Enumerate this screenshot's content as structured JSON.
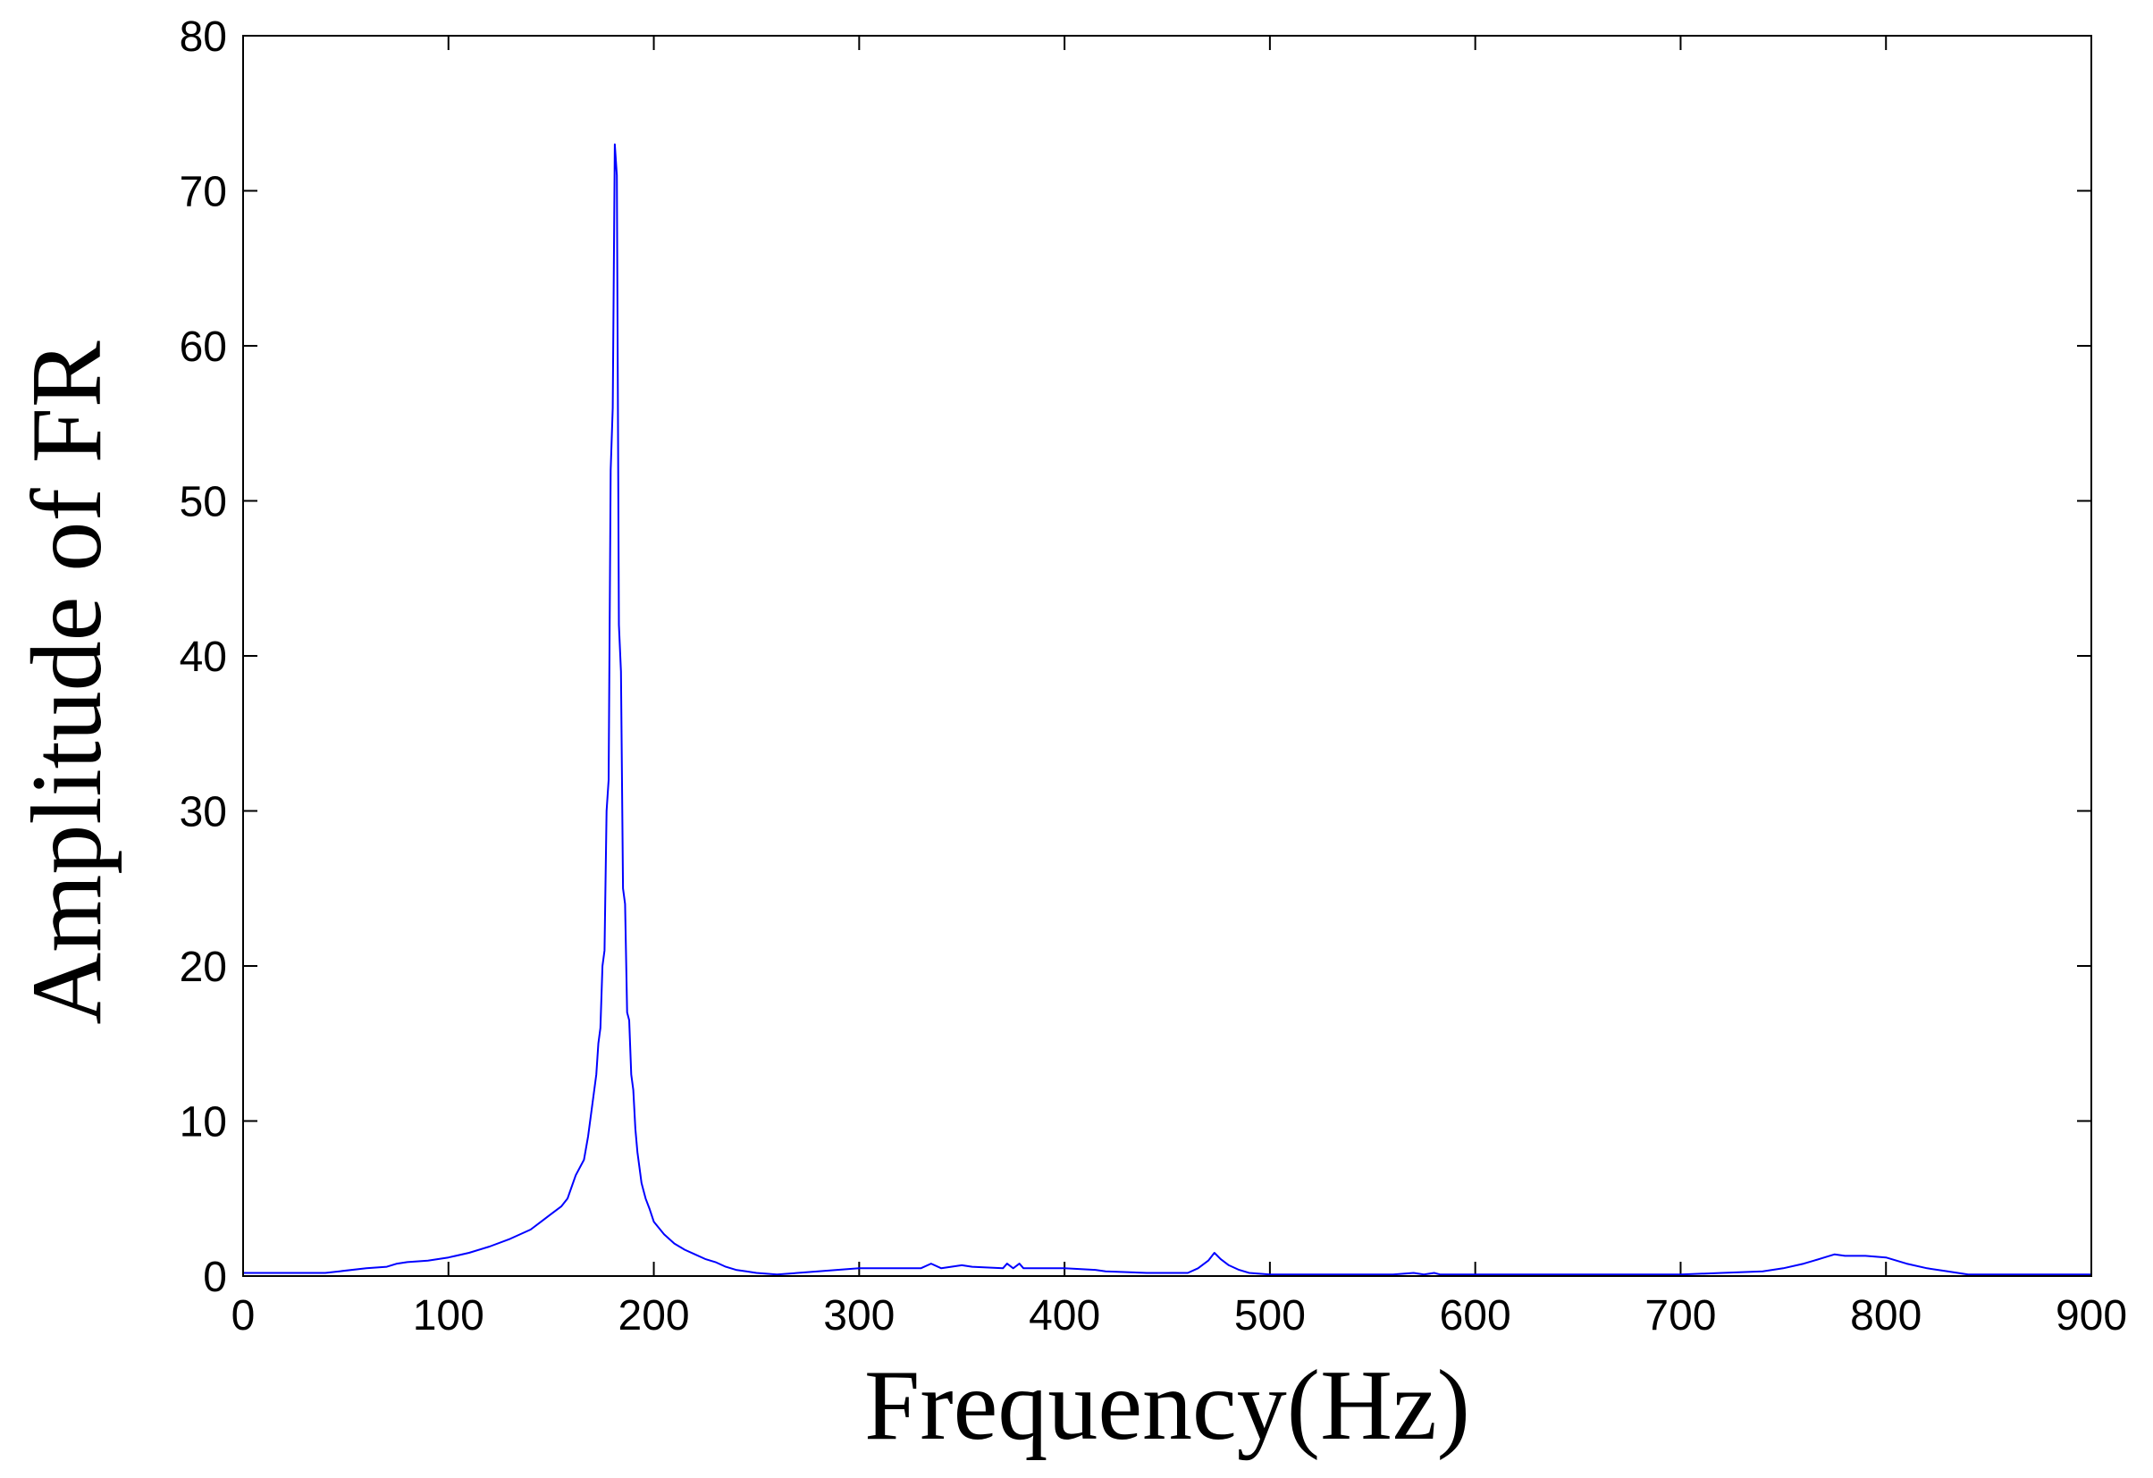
{
  "chart_data": {
    "type": "line",
    "title": "",
    "xlabel": "Frequency(Hz)",
    "ylabel": "Amplitude of FR",
    "xlim": [
      0,
      900
    ],
    "ylim": [
      0,
      80
    ],
    "xticks": [
      0,
      100,
      200,
      300,
      400,
      500,
      600,
      700,
      800,
      900
    ],
    "yticks": [
      0,
      10,
      20,
      30,
      40,
      50,
      60,
      70,
      80
    ],
    "grid": false,
    "legend": "none",
    "colors": {
      "line": "#0000ff",
      "axes": "#000000",
      "background": "#ffffff"
    },
    "series": [
      {
        "x": [
          0,
          40,
          60,
          70,
          75,
          80,
          90,
          100,
          110,
          120,
          130,
          140,
          145,
          150,
          155,
          158,
          162,
          166,
          168,
          170,
          172,
          173,
          174,
          175,
          176,
          177,
          178,
          179,
          180,
          181,
          182,
          183,
          184,
          185,
          186,
          187,
          188,
          189,
          190,
          191,
          192,
          193,
          194,
          195,
          196,
          198,
          200,
          205,
          210,
          215,
          220,
          225,
          230,
          235,
          240,
          245,
          250,
          260,
          280,
          300,
          330,
          335,
          340,
          350,
          355,
          370,
          372,
          375,
          378,
          380,
          400,
          415,
          420,
          440,
          460,
          465,
          470,
          473,
          476,
          480,
          485,
          490,
          500,
          520,
          540,
          560,
          570,
          575,
          580,
          583,
          600,
          650,
          700,
          720,
          740,
          750,
          760,
          765,
          770,
          775,
          780,
          790,
          800,
          810,
          820,
          830,
          840,
          900
        ],
        "values": [
          0.2,
          0.2,
          0.5,
          0.6,
          0.8,
          0.9,
          1.0,
          1.2,
          1.5,
          1.9,
          2.4,
          3.0,
          3.5,
          4.0,
          4.5,
          5.0,
          6.5,
          7.5,
          9.0,
          11.0,
          13.0,
          15.0,
          16.0,
          20.0,
          21.0,
          30.0,
          32.0,
          52.0,
          56.0,
          73.0,
          71.0,
          42.0,
          39.0,
          25.0,
          24.0,
          17.0,
          16.5,
          13.0,
          12.0,
          9.5,
          8.0,
          7.0,
          6.0,
          5.5,
          5.0,
          4.3,
          3.5,
          2.7,
          2.1,
          1.7,
          1.4,
          1.1,
          0.9,
          0.6,
          0.4,
          0.3,
          0.2,
          0.1,
          0.3,
          0.5,
          0.5,
          0.8,
          0.5,
          0.7,
          0.6,
          0.5,
          0.8,
          0.5,
          0.8,
          0.5,
          0.5,
          0.4,
          0.3,
          0.2,
          0.2,
          0.5,
          1.0,
          1.5,
          1.1,
          0.7,
          0.4,
          0.2,
          0.1,
          0.1,
          0.1,
          0.1,
          0.2,
          0.1,
          0.2,
          0.1,
          0.1,
          0.1,
          0.1,
          0.2,
          0.3,
          0.5,
          0.8,
          1.0,
          1.2,
          1.4,
          1.3,
          1.3,
          1.2,
          0.8,
          0.5,
          0.3,
          0.1,
          0.1
        ]
      }
    ]
  }
}
